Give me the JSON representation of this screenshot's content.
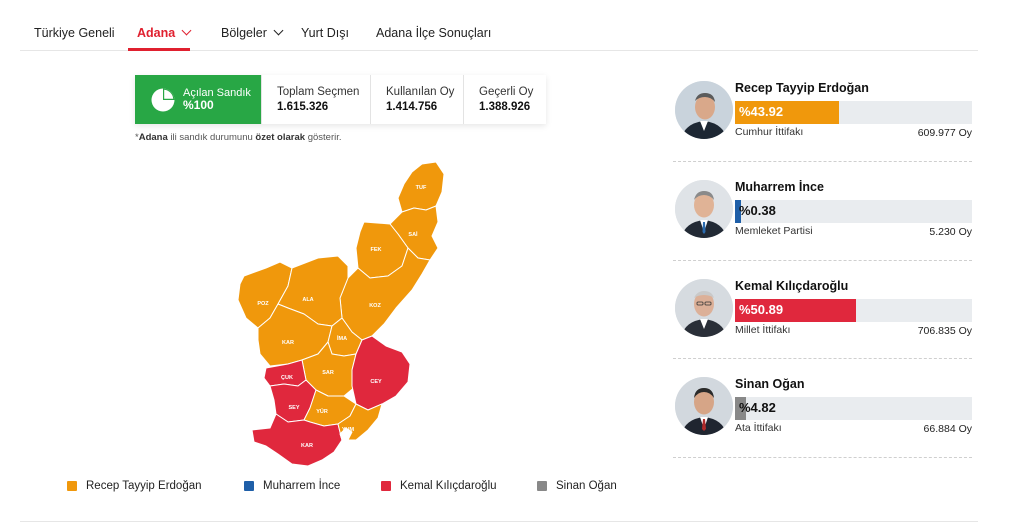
{
  "nav": {
    "items": [
      "Türkiye Geneli",
      "Adana",
      "Bölgeler",
      "Yurt Dışı",
      "Adana İlçe Sonuçları"
    ]
  },
  "stats": {
    "opened": {
      "label": "Açılan Sandık",
      "value": "%100"
    },
    "total": {
      "label": "Toplam Seçmen",
      "value": "1.615.326"
    },
    "used": {
      "label": "Kullanılan Oy",
      "value": "1.414.756"
    },
    "valid": {
      "label": "Geçerli Oy",
      "value": "1.388.926"
    }
  },
  "note": {
    "prefix": "*",
    "city": "Adana",
    "middle": " ili sandık durumunu ",
    "emph": "özet olarak",
    "suffix": " gösterir."
  },
  "map": {
    "districts": [
      "TUF",
      "SAİ",
      "FEK",
      "POZ",
      "ALA",
      "KOZ",
      "KAR",
      "İMA",
      "ÇUK",
      "SAR",
      "CEY",
      "SEY",
      "YÜR",
      "KAR",
      "YUM"
    ]
  },
  "legend": [
    {
      "name": "Recep Tayyip Erdoğan",
      "color": "#f0980c"
    },
    {
      "name": "Muharrem İnce",
      "color": "#1f5fa8"
    },
    {
      "name": "Kemal Kılıçdaroğlu",
      "color": "#e0283d"
    },
    {
      "name": "Sinan Oğan",
      "color": "#888888"
    }
  ],
  "candidates": [
    {
      "name": "Recep Tayyip Erdoğan",
      "percent": "%43.92",
      "share": 43.92,
      "alliance": "Cumhur İttifakı",
      "votes": "609.977 Oy",
      "color": "#f0980c"
    },
    {
      "name": "Muharrem İnce",
      "percent": "%0.38",
      "share": 0.38,
      "alliance": "Memleket Partisi",
      "votes": "5.230 Oy",
      "color": "#1f5fa8"
    },
    {
      "name": "Kemal Kılıçdaroğlu",
      "percent": "%50.89",
      "share": 50.89,
      "alliance": "Millet İttifakı",
      "votes": "706.835 Oy",
      "color": "#e0283d"
    },
    {
      "name": "Sinan Oğan",
      "percent": "%4.82",
      "share": 4.82,
      "alliance": "Ata İttifakı",
      "votes": "66.884 Oy",
      "color": "#888888"
    }
  ]
}
